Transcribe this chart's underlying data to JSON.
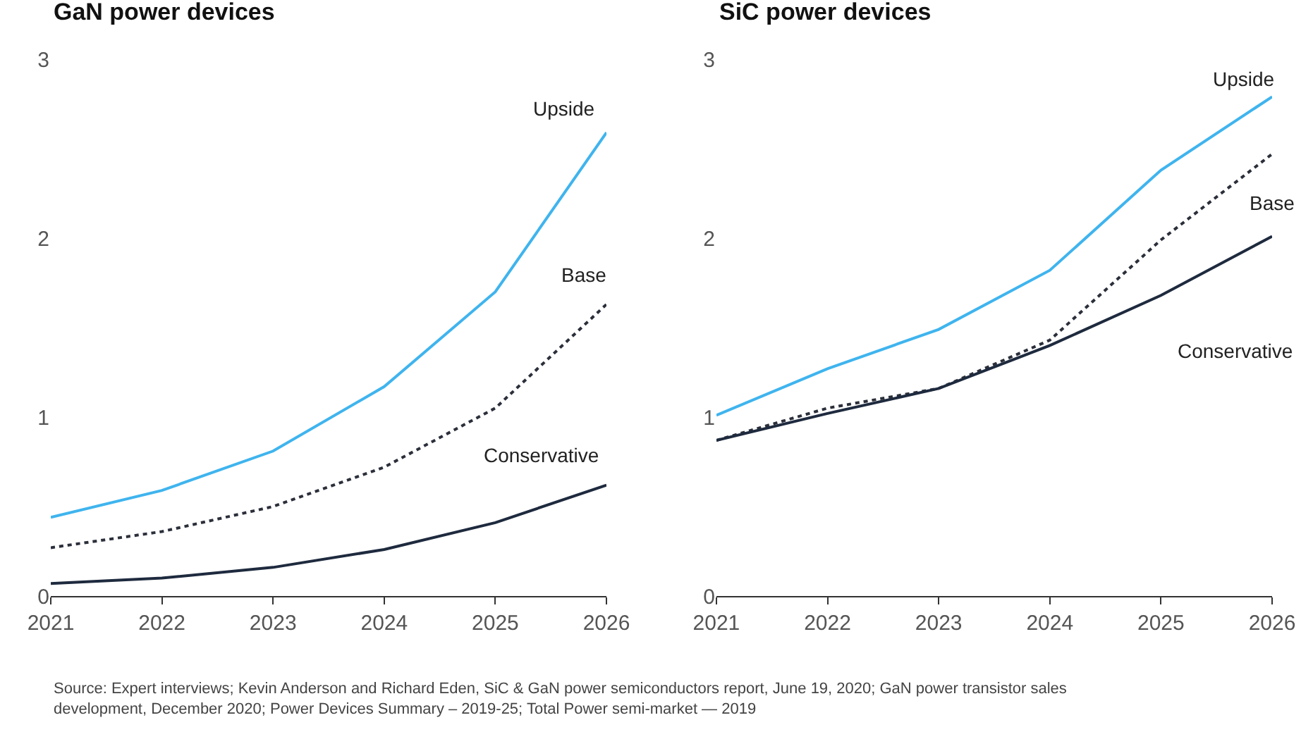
{
  "chart_data": [
    {
      "type": "line",
      "title": "GaN power devices",
      "x": [
        2021,
        2022,
        2023,
        2024,
        2025,
        2026
      ],
      "xlim": [
        2021,
        2026
      ],
      "xticks": [
        2021,
        2022,
        2023,
        2024,
        2025,
        2026
      ],
      "ylim": [
        0,
        3
      ],
      "yticks": [
        0,
        1,
        2,
        3
      ],
      "marker": "none",
      "series": [
        {
          "name": "Upside",
          "color": "#3fb4ee",
          "line_style": "solid",
          "values": [
            0.44,
            0.59,
            0.81,
            1.17,
            1.7,
            2.59
          ]
        },
        {
          "name": "Base",
          "color": "#2b2f3a",
          "line_style": "dotted",
          "values": [
            0.27,
            0.36,
            0.5,
            0.72,
            1.05,
            1.63
          ]
        },
        {
          "name": "Conservative",
          "color": "#1e2a3e",
          "line_style": "solid",
          "values": [
            0.07,
            0.1,
            0.16,
            0.26,
            0.41,
            0.62
          ]
        }
      ],
      "annotations": [
        "Source: Expert interviews; Kevin Anderson and Richard Eden, SiC & GaN power semiconductors report, June 19, 2020; GaN power transistor sales development, December 2020; Power Devices Summary – 2019-25; Total Power semi-market — 2019"
      ]
    },
    {
      "type": "line",
      "title": "SiC power devices",
      "x": [
        2021,
        2022,
        2023,
        2024,
        2025,
        2026
      ],
      "xlim": [
        2021,
        2026
      ],
      "xticks": [
        2021,
        2022,
        2023,
        2024,
        2025,
        2026
      ],
      "ylim": [
        0,
        3
      ],
      "yticks": [
        0,
        1,
        2,
        3
      ],
      "marker": "none",
      "series": [
        {
          "name": "Upside",
          "color": "#3fb4ee",
          "line_style": "solid",
          "values": [
            1.01,
            1.27,
            1.49,
            1.82,
            2.38,
            2.79
          ]
        },
        {
          "name": "Base",
          "color": "#2b2f3a",
          "line_style": "dotted",
          "values": [
            0.87,
            1.05,
            1.16,
            1.43,
            1.99,
            2.47
          ]
        },
        {
          "name": "Conservative",
          "color": "#1e2a3e",
          "line_style": "solid",
          "values": [
            0.87,
            1.02,
            1.16,
            1.4,
            1.68,
            2.01
          ]
        }
      ]
    }
  ]
}
